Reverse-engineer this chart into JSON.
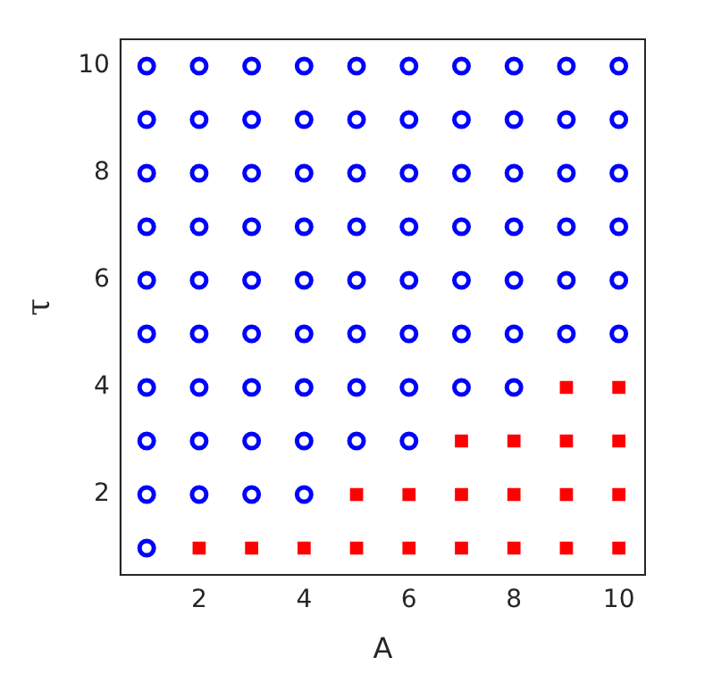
{
  "chart_data": {
    "type": "scatter",
    "xlabel": "A",
    "ylabel": "τ",
    "xlim": [
      0.5,
      10.5
    ],
    "ylim": [
      0.5,
      10.5
    ],
    "xticks": [
      2,
      4,
      6,
      8,
      10
    ],
    "yticks": [
      2,
      4,
      6,
      8,
      10
    ],
    "series": [
      {
        "color": "#0000ff",
        "marker": "circle",
        "x": [
          1,
          1,
          2,
          3,
          4,
          1,
          2,
          3,
          4,
          5,
          6,
          1,
          2,
          3,
          4,
          5,
          6,
          7,
          8,
          1,
          2,
          3,
          4,
          5,
          6,
          7,
          8,
          9,
          10,
          1,
          2,
          3,
          4,
          5,
          6,
          7,
          8,
          9,
          10,
          1,
          2,
          3,
          4,
          5,
          6,
          7,
          8,
          9,
          10,
          1,
          2,
          3,
          4,
          5,
          6,
          7,
          8,
          9,
          10,
          1,
          2,
          3,
          4,
          5,
          6,
          7,
          8,
          9,
          10,
          1,
          2,
          3,
          4,
          5,
          6,
          7,
          8,
          9,
          10
        ],
        "values": [
          1,
          2,
          2,
          2,
          2,
          3,
          3,
          3,
          3,
          3,
          3,
          4,
          4,
          4,
          4,
          4,
          4,
          4,
          4,
          5,
          5,
          5,
          5,
          5,
          5,
          5,
          5,
          5,
          5,
          6,
          6,
          6,
          6,
          6,
          6,
          6,
          6,
          6,
          6,
          7,
          7,
          7,
          7,
          7,
          7,
          7,
          7,
          7,
          7,
          8,
          8,
          8,
          8,
          8,
          8,
          8,
          8,
          8,
          8,
          9,
          9,
          9,
          9,
          9,
          9,
          9,
          9,
          9,
          9,
          10,
          10,
          10,
          10,
          10,
          10,
          10,
          10,
          10,
          10
        ]
      },
      {
        "color": "#ff0000",
        "marker": "square",
        "x": [
          2,
          3,
          4,
          5,
          6,
          7,
          8,
          9,
          10,
          5,
          6,
          7,
          8,
          9,
          10,
          7,
          8,
          9,
          10,
          9,
          10
        ],
        "values": [
          1,
          1,
          1,
          1,
          1,
          1,
          1,
          1,
          1,
          2,
          2,
          2,
          2,
          2,
          2,
          3,
          3,
          3,
          3,
          4,
          4
        ]
      }
    ]
  }
}
